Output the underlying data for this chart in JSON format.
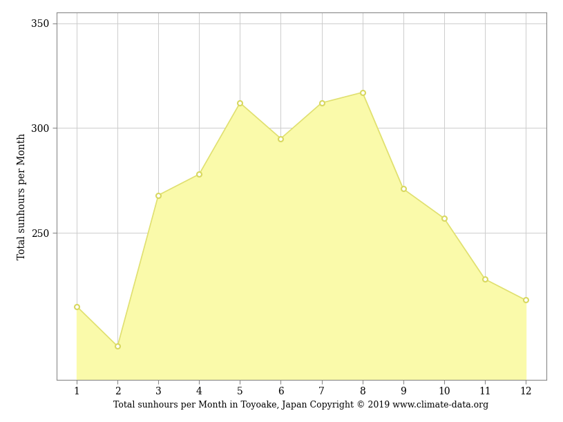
{
  "months": [
    1,
    2,
    3,
    4,
    5,
    6,
    7,
    8,
    9,
    10,
    11,
    12
  ],
  "sunhours": [
    215,
    196,
    268,
    278,
    312,
    295,
    312,
    317,
    271,
    257,
    228,
    218
  ],
  "fill_color": "#FAFAAA",
  "line_color": "#E0E070",
  "marker_color": "#FFFFFF",
  "marker_edge_color": "#D8D860",
  "ylabel": "Total sunhours per Month",
  "xlabel": "Total sunhours per Month in Toyoake, Japan Copyright © 2019 www.climate-data.org",
  "ylim_min": 180,
  "ylim_max": 355,
  "yticks": [
    250,
    300,
    350
  ],
  "background_color": "#ffffff",
  "grid_color": "#cccccc",
  "font_family": "DejaVu Serif",
  "tick_fontsize": 10,
  "label_fontsize": 10,
  "xlabel_fontsize": 9
}
